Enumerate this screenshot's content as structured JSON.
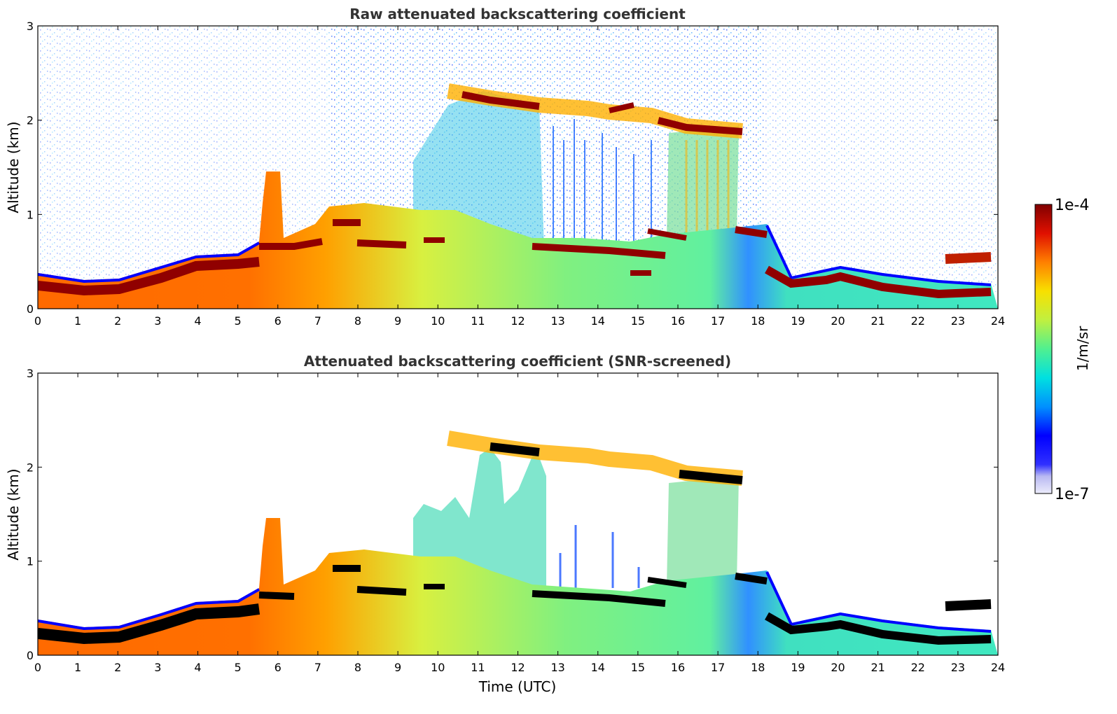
{
  "chart_data": [
    {
      "type": "heatmap",
      "title": "Raw attenuated backscattering coefficient",
      "xlabel": "",
      "ylabel": "Altitude (km)",
      "xlim": [
        0,
        24
      ],
      "ylim": [
        0,
        3
      ],
      "xticks": [
        "0",
        "1",
        "2",
        "3",
        "4",
        "5",
        "6",
        "7",
        "8",
        "9",
        "10",
        "11",
        "12",
        "13",
        "14",
        "15",
        "16",
        "17",
        "18",
        "19",
        "20",
        "21",
        "22",
        "23",
        "24"
      ],
      "yticks": [
        "0",
        "1",
        "2",
        "3"
      ],
      "screened": false,
      "features": {
        "boundary_layer_top_km": [
          [
            0,
            0.33
          ],
          [
            1,
            0.3
          ],
          [
            2,
            0.3
          ],
          [
            3,
            0.45
          ],
          [
            4,
            0.55
          ],
          [
            5,
            0.55
          ],
          [
            6,
            0.62
          ],
          [
            7,
            0.7
          ],
          [
            7.5,
            0.95
          ],
          [
            8,
            0.8
          ],
          [
            9,
            0.72
          ],
          [
            10,
            0.75
          ],
          [
            11,
            0.8
          ],
          [
            12,
            0.75
          ],
          [
            13,
            0.7
          ],
          [
            14,
            0.65
          ],
          [
            15,
            0.6
          ],
          [
            16,
            0.7
          ],
          [
            17,
            0.75
          ],
          [
            18,
            0.75
          ],
          [
            19,
            0.45
          ],
          [
            20,
            0.45
          ],
          [
            21,
            0.35
          ],
          [
            22,
            0.3
          ],
          [
            23,
            0.2
          ],
          [
            24,
            0.2
          ]
        ],
        "upper_cloud_km": [
          [
            10.3,
            2.3
          ],
          [
            11,
            2.3
          ],
          [
            12,
            2.2
          ],
          [
            13,
            2.15
          ],
          [
            14,
            2.1
          ],
          [
            15,
            2.05
          ],
          [
            16,
            1.95
          ],
          [
            17,
            1.85
          ],
          [
            17.6,
            1.85
          ]
        ]
      }
    },
    {
      "type": "heatmap",
      "title": "Attenuated backscattering coefficient (SNR-screened)",
      "xlabel": "Time (UTC)",
      "ylabel": "Altitude (km)",
      "xlim": [
        0,
        24
      ],
      "ylim": [
        0,
        3
      ],
      "xticks": [
        "0",
        "1",
        "2",
        "3",
        "4",
        "5",
        "6",
        "7",
        "8",
        "9",
        "10",
        "11",
        "12",
        "13",
        "14",
        "15",
        "16",
        "17",
        "18",
        "19",
        "20",
        "21",
        "22",
        "23",
        "24"
      ],
      "yticks": [
        "0",
        "1",
        "2",
        "3"
      ],
      "screened": true
    }
  ],
  "colorbar": {
    "max_label": "1e-4",
    "min_label": "1e-7",
    "unit_label": "1/m/sr",
    "colors": [
      "#e6e6fa",
      "#b0b0f0",
      "#0000ff",
      "#0080ff",
      "#00e0e0",
      "#40f0a0",
      "#a0f060",
      "#f0f020",
      "#ffa000",
      "#ff4000",
      "#c00000",
      "#800000"
    ]
  }
}
